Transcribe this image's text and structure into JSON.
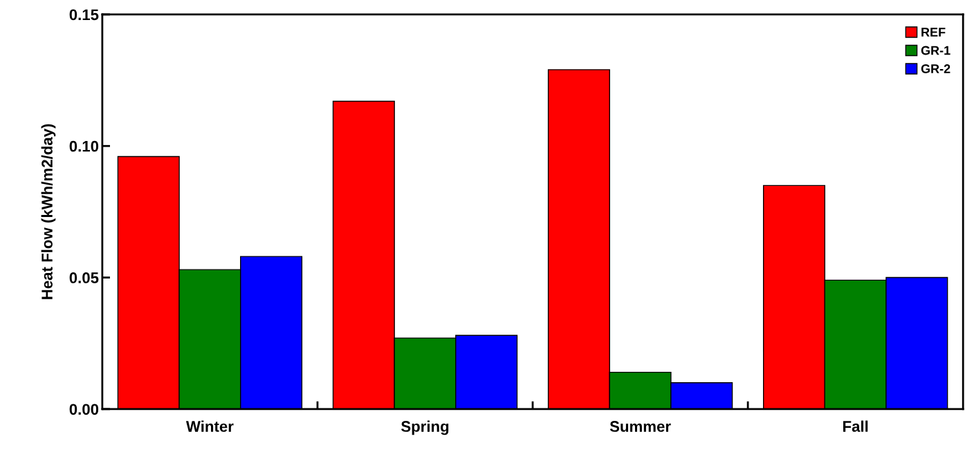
{
  "chart_data": {
    "type": "bar",
    "ylabel": "Heat Flow (kWh/m2/day)",
    "categories": [
      "Winter",
      "Spring",
      "Summer",
      "Fall"
    ],
    "series": [
      {
        "name": "REF",
        "color": "#ff0000",
        "values": [
          0.096,
          0.117,
          0.129,
          0.085
        ]
      },
      {
        "name": "GR-1",
        "color": "#008000",
        "values": [
          0.053,
          0.027,
          0.014,
          0.049
        ]
      },
      {
        "name": "GR-2",
        "color": "#0000ff",
        "values": [
          0.058,
          0.028,
          0.01,
          0.05
        ]
      }
    ],
    "ylim": [
      0,
      0.15
    ],
    "yticks": [
      {
        "value": 0,
        "label": "0.00"
      },
      {
        "value": 0.05,
        "label": "0.05"
      },
      {
        "value": 0.1,
        "label": "0.10"
      },
      {
        "value": 0.15,
        "label": "0.15"
      }
    ],
    "legend": "top right",
    "grid": false
  }
}
